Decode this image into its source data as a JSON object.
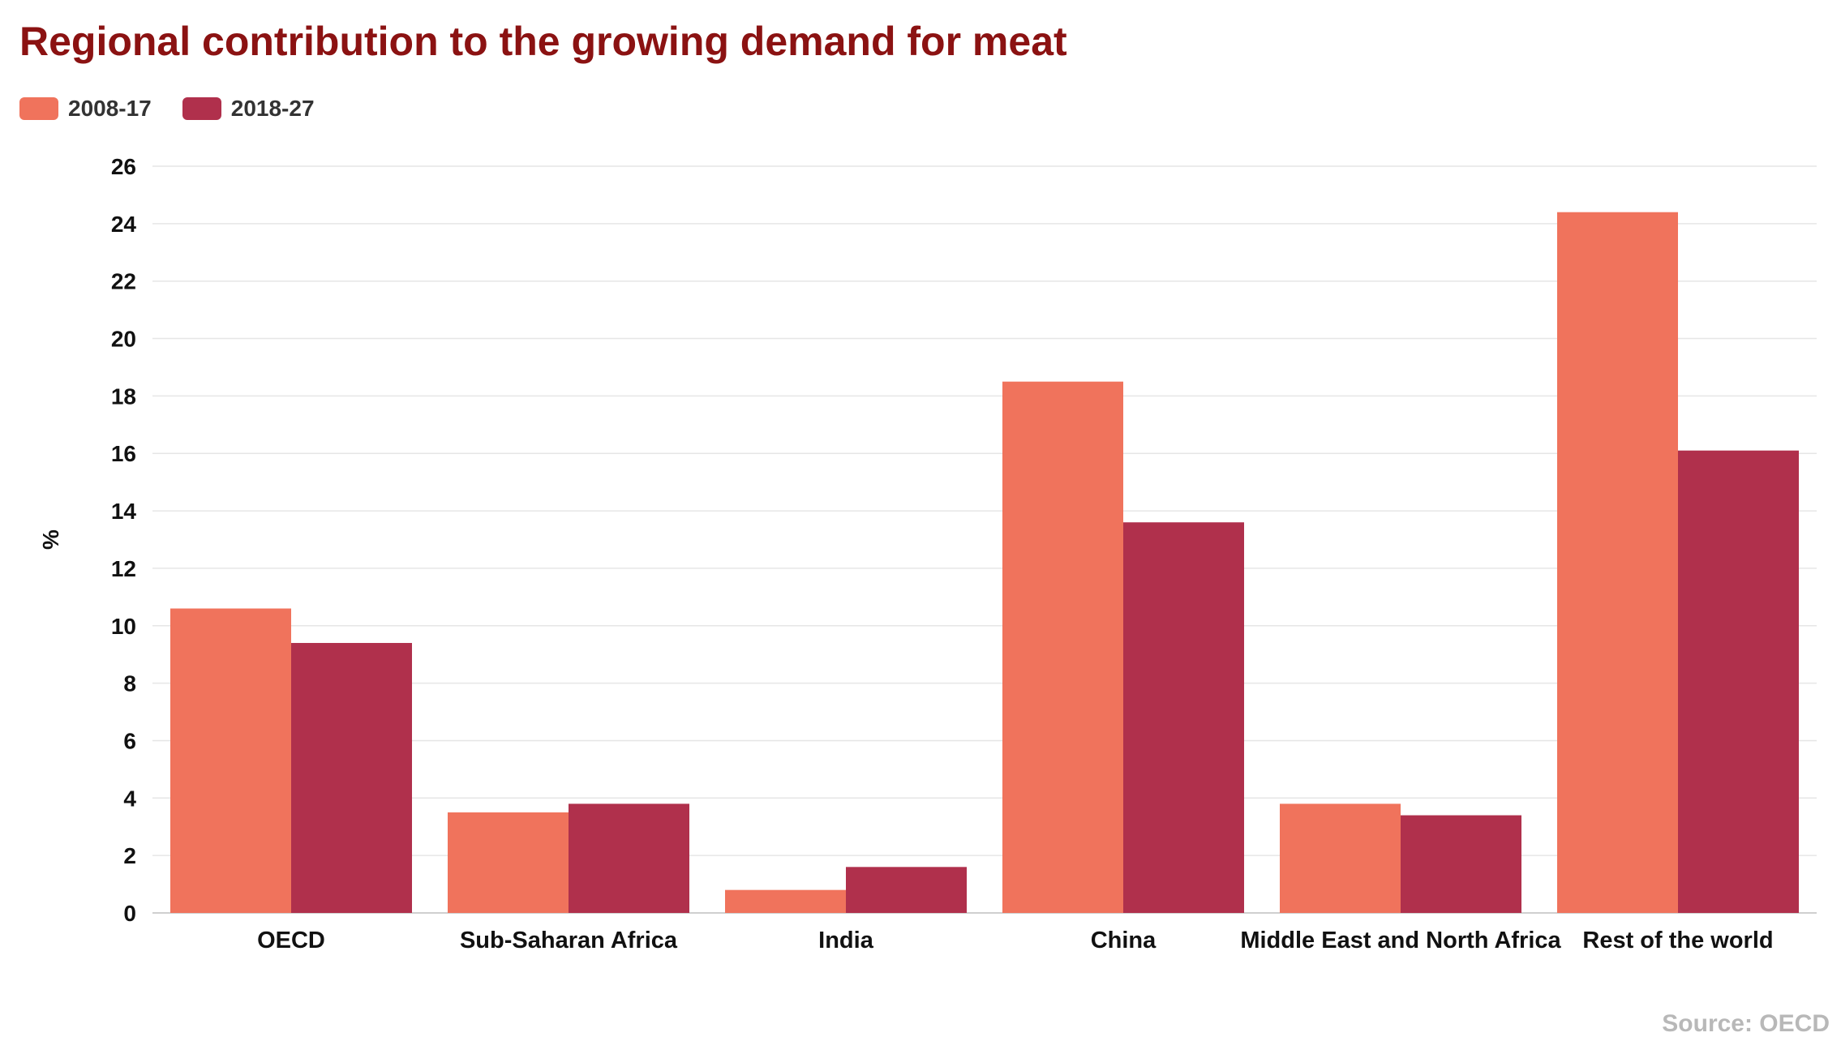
{
  "title": "Regional contribution to the growing demand for meat",
  "source": "Source: OECD",
  "colors": {
    "title": "#8b1212",
    "series_1": "#f0735c",
    "series_2": "#b0304c",
    "grid": "#e6e6e6",
    "tick_text": "#111111",
    "source_text": "#b8b8b8"
  },
  "chart_data": {
    "type": "bar",
    "title": "Regional contribution to the growing demand for meat",
    "xlabel": "",
    "ylabel": "%",
    "categories": [
      "OECD",
      "Sub-Saharan Africa",
      "India",
      "China",
      "Middle East and North Africa",
      "Rest of the world"
    ],
    "series": [
      {
        "name": "2008-17",
        "color": "#f0735c",
        "values": [
          10.6,
          3.5,
          0.8,
          18.5,
          3.8,
          24.4
        ]
      },
      {
        "name": "2018-27",
        "color": "#b0304c",
        "values": [
          9.4,
          3.8,
          1.6,
          13.6,
          3.4,
          16.1
        ]
      }
    ],
    "ylim": [
      0,
      26
    ],
    "yticks": [
      "0",
      "2",
      "4",
      "6",
      "8",
      "10",
      "12",
      "14",
      "16",
      "18",
      "20",
      "22",
      "24",
      "26"
    ],
    "grid": true,
    "legend_position": "top-left"
  }
}
